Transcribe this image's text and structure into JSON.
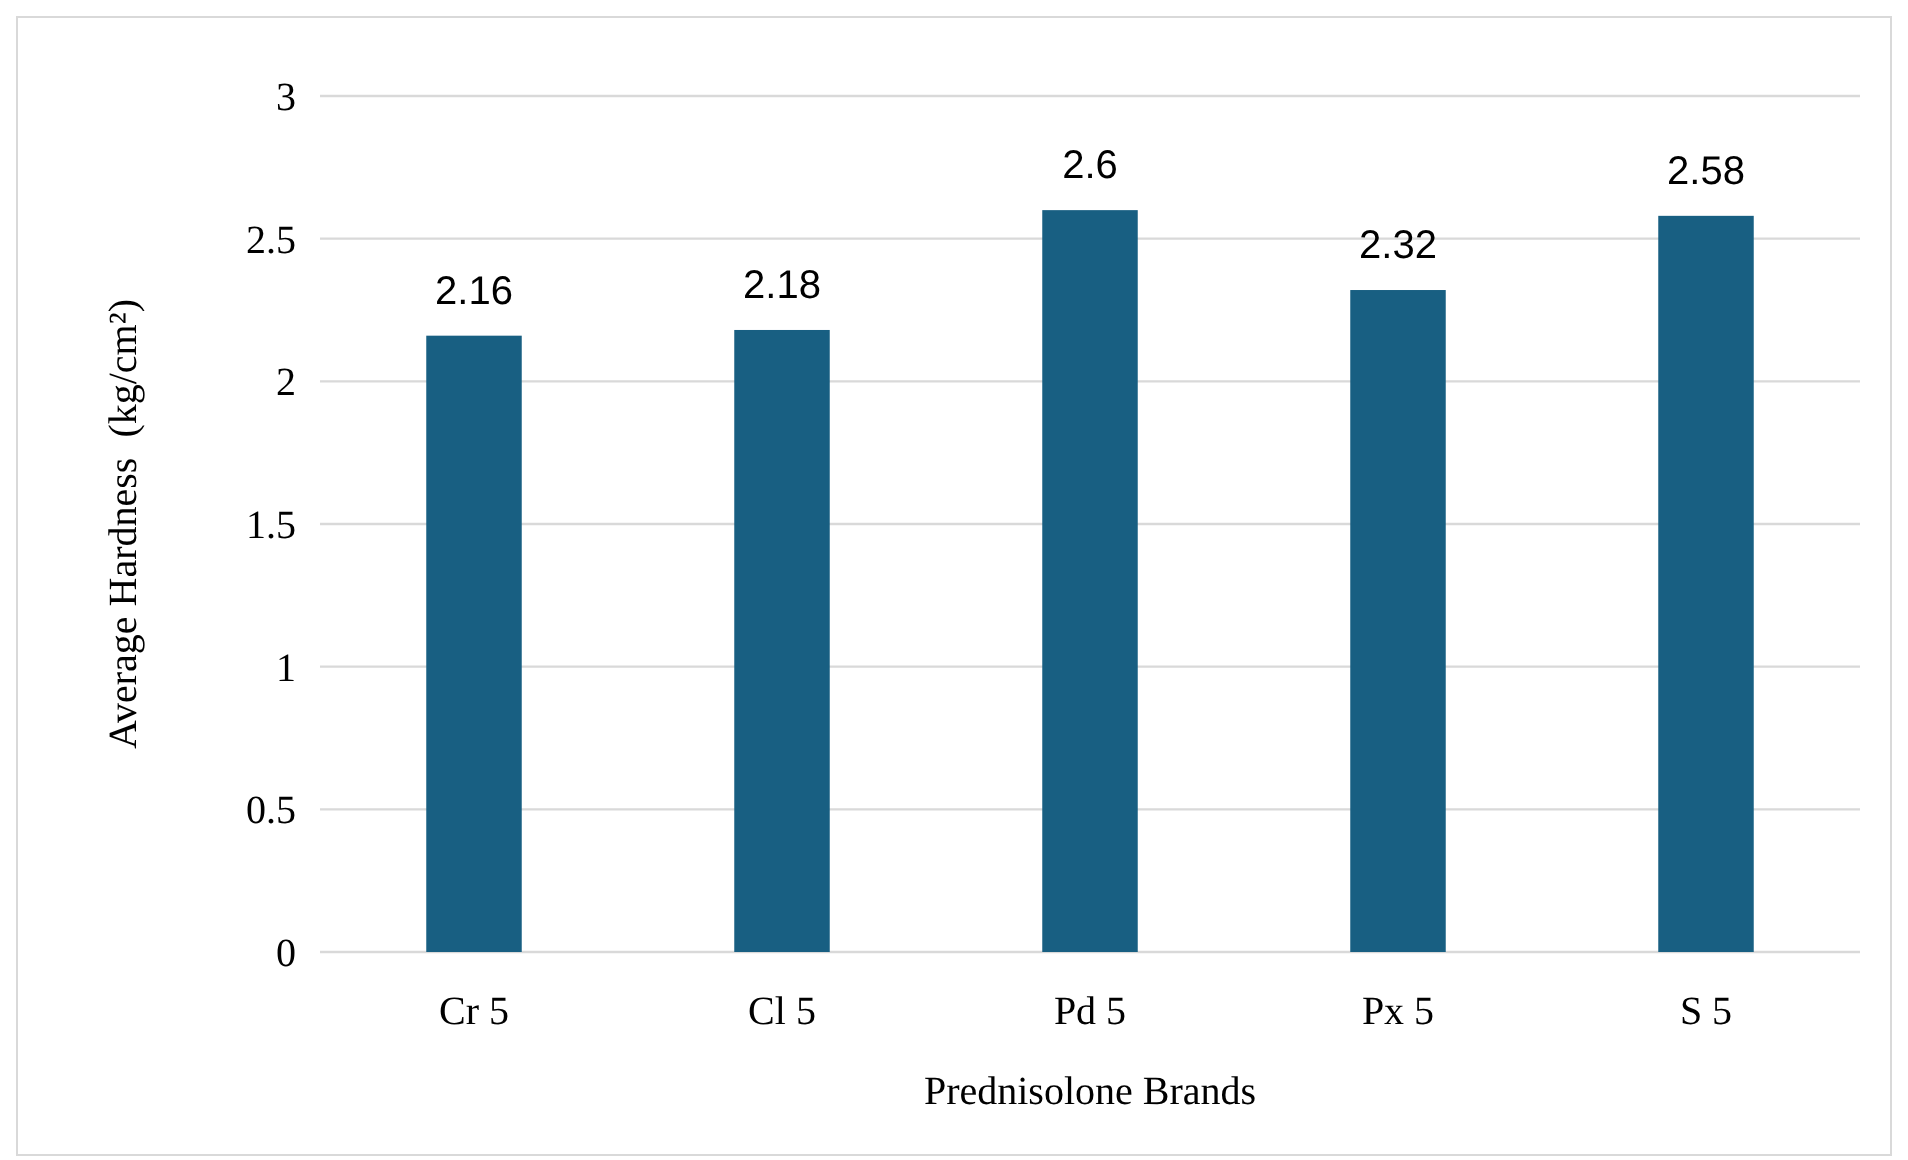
{
  "chart_data": {
    "type": "bar",
    "xlabel": "Prednisolone Brands",
    "ylabel": "Average Hardness  (kg/cm²)",
    "categories": [
      "Cr 5",
      "Cl 5",
      "Pd 5",
      "Px 5",
      "S 5"
    ],
    "values": [
      2.16,
      2.18,
      2.6,
      2.32,
      2.58
    ],
    "color": "#185f82",
    "ylim": [
      0,
      3
    ],
    "yticks": [
      0,
      0.5,
      1,
      1.5,
      2,
      2.5,
      3
    ],
    "grid": "y",
    "data_labels": true
  }
}
